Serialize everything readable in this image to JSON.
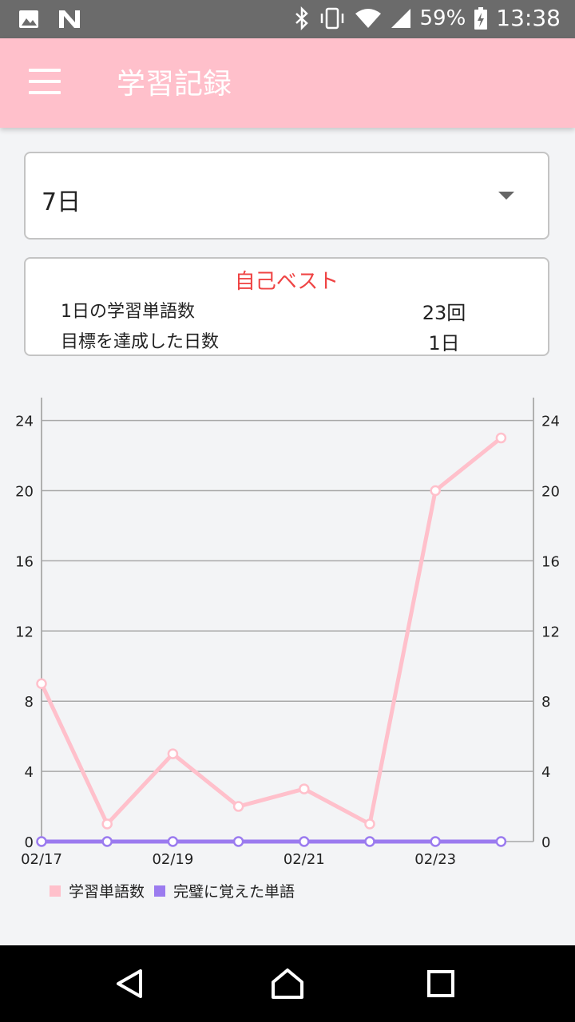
{
  "status_bar": {
    "battery": "59%",
    "time": "13:38",
    "icons": [
      "image-icon",
      "n-icon",
      "bluetooth-icon",
      "vibrate-icon",
      "wifi-icon",
      "signal-icon",
      "battery-charging-icon"
    ]
  },
  "app_bar": {
    "title": "学習記録",
    "menu_icon": "hamburger-menu-icon"
  },
  "period_select": {
    "selected": "7日"
  },
  "personal_best": {
    "heading": "自己ベスト",
    "rows": [
      {
        "label": "1日の学習単語数",
        "value": "23回"
      },
      {
        "label": "目標を達成した日数",
        "value": "1日"
      }
    ]
  },
  "chart_data": {
    "type": "line",
    "x": [
      "02/17",
      "02/18",
      "02/19",
      "02/20",
      "02/21",
      "02/22",
      "02/23",
      "02/24"
    ],
    "x_tick_labels": [
      "02/17",
      "02/19",
      "02/21",
      "02/23"
    ],
    "y_ticks": [
      0,
      4,
      8,
      12,
      16,
      20,
      24
    ],
    "ylim": [
      0,
      25.3
    ],
    "grid": true,
    "legend": "bottom-left",
    "series": [
      {
        "name": "学習単語数",
        "color": "#ffc0cb",
        "values": [
          9,
          1,
          5,
          2,
          3,
          1,
          20,
          23
        ]
      },
      {
        "name": "完璧に覚えた単語",
        "color": "#9b7bef",
        "values": [
          0,
          0,
          0,
          0,
          0,
          0,
          0,
          0
        ]
      }
    ]
  },
  "nav_bar": {
    "icons": [
      "back-icon",
      "home-icon",
      "recents-icon"
    ]
  }
}
